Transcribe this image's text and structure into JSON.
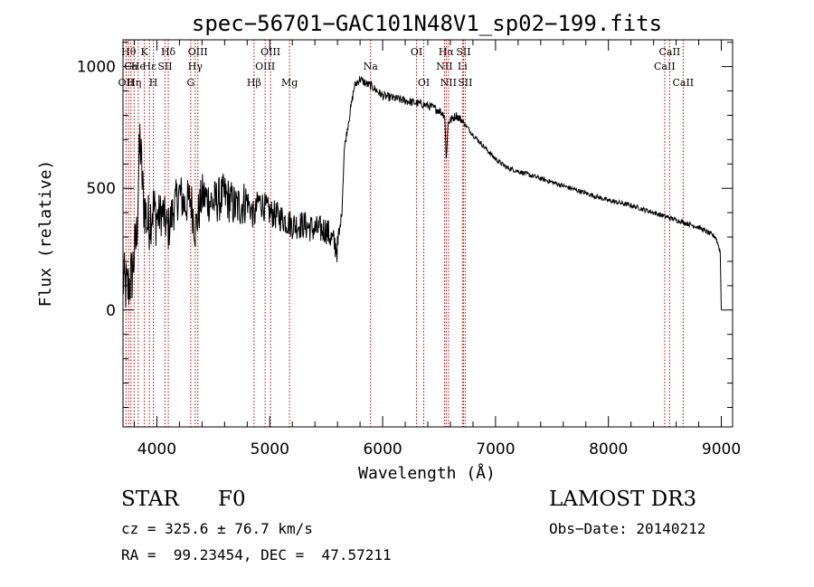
{
  "chart_data": {
    "type": "line",
    "title": "spec−56701−GAC101N48V1_sp02−199.fits",
    "xlabel": "Wavelength (Å)",
    "ylabel": "Flux (relative)",
    "xlim": [
      3700,
      9100
    ],
    "ylim": [
      -480,
      1110
    ],
    "x_ticks": [
      4000,
      5000,
      6000,
      7000,
      8000,
      9000
    ],
    "y_ticks": [
      0,
      500,
      1000
    ],
    "x_minor_step": 200,
    "y_minor_step": 100,
    "series": [
      {
        "name": "spectrum",
        "anchors": [
          [
            3700,
            120
          ],
          [
            3740,
            80
          ],
          [
            3780,
            150
          ],
          [
            3820,
            300
          ],
          [
            3850,
            700
          ],
          [
            3880,
            450
          ],
          [
            3920,
            350
          ],
          [
            3960,
            420
          ],
          [
            4000,
            380
          ],
          [
            4050,
            400
          ],
          [
            4101,
            330
          ],
          [
            4150,
            420
          ],
          [
            4200,
            480
          ],
          [
            4250,
            430
          ],
          [
            4300,
            460
          ],
          [
            4340,
            330
          ],
          [
            4400,
            470
          ],
          [
            4500,
            440
          ],
          [
            4600,
            470
          ],
          [
            4700,
            420
          ],
          [
            4800,
            450
          ],
          [
            4861,
            380
          ],
          [
            4900,
            450
          ],
          [
            5000,
            400
          ],
          [
            5100,
            380
          ],
          [
            5200,
            350
          ],
          [
            5300,
            350
          ],
          [
            5400,
            330
          ],
          [
            5500,
            330
          ],
          [
            5560,
            280
          ],
          [
            5600,
            250
          ],
          [
            5640,
            410
          ],
          [
            5660,
            660
          ],
          [
            5700,
            780
          ],
          [
            5750,
            920
          ],
          [
            5800,
            950
          ],
          [
            5850,
            930
          ],
          [
            5900,
            920
          ],
          [
            5950,
            900
          ],
          [
            6000,
            880
          ],
          [
            6100,
            870
          ],
          [
            6200,
            860
          ],
          [
            6300,
            850
          ],
          [
            6400,
            840
          ],
          [
            6500,
            820
          ],
          [
            6550,
            800
          ],
          [
            6563,
            620
          ],
          [
            6580,
            770
          ],
          [
            6650,
            800
          ],
          [
            6700,
            780
          ],
          [
            6800,
            720
          ],
          [
            6900,
            670
          ],
          [
            7000,
            620
          ],
          [
            7100,
            585
          ],
          [
            7200,
            570
          ],
          [
            7400,
            540
          ],
          [
            7600,
            510
          ],
          [
            7800,
            480
          ],
          [
            8000,
            450
          ],
          [
            8200,
            430
          ],
          [
            8400,
            400
          ],
          [
            8600,
            370
          ],
          [
            8800,
            340
          ],
          [
            8950,
            300
          ],
          [
            8990,
            240
          ],
          [
            9000,
            0
          ]
        ]
      }
    ],
    "lines": [
      {
        "x": 3727,
        "label": "OII",
        "row": 3
      },
      {
        "x": 3750,
        "label": "Hθ",
        "row": 1
      },
      {
        "x": 3770,
        "label": "Ca",
        "row": 2
      },
      {
        "x": 3798,
        "label": "Hη",
        "row": 3
      },
      {
        "x": 3835,
        "label": "He",
        "row": 2
      },
      {
        "x": 3889,
        "label": "K",
        "row": 1
      },
      {
        "x": 3934,
        "label": "Hε",
        "row": 2
      },
      {
        "x": 3969,
        "label": "H",
        "row": 3
      },
      {
        "x": 4072,
        "label": "SII",
        "row": 2
      },
      {
        "x": 4101,
        "label": "Hδ",
        "row": 1
      },
      {
        "x": 4300,
        "label": "G",
        "row": 3
      },
      {
        "x": 4340,
        "label": "Hγ",
        "row": 2
      },
      {
        "x": 4363,
        "label": "OIII",
        "row": 1
      },
      {
        "x": 4861,
        "label": "Hβ",
        "row": 3
      },
      {
        "x": 4959,
        "label": "OIII",
        "row": 2
      },
      {
        "x": 5007,
        "label": "OIII",
        "row": 1
      },
      {
        "x": 5175,
        "label": "Mg",
        "row": 3
      },
      {
        "x": 5893,
        "label": "Na",
        "row": 2
      },
      {
        "x": 6300,
        "label": "OI",
        "row": 1
      },
      {
        "x": 6364,
        "label": "OI",
        "row": 3
      },
      {
        "x": 6548,
        "label": "NII",
        "row": 2
      },
      {
        "x": 6563,
        "label": "Hα",
        "row": 1
      },
      {
        "x": 6583,
        "label": "NII",
        "row": 3
      },
      {
        "x": 6707,
        "label": "Li",
        "row": 2
      },
      {
        "x": 6716,
        "label": "SII",
        "row": 1
      },
      {
        "x": 6731,
        "label": "SII",
        "row": 3
      },
      {
        "x": 8498,
        "label": "CaII",
        "row": 2
      },
      {
        "x": 8542,
        "label": "CaII",
        "row": 1
      },
      {
        "x": 8662,
        "label": "CaII",
        "row": 3
      }
    ]
  },
  "info": {
    "object_class": "STAR",
    "subclass": "F0",
    "survey": "LAMOST DR3",
    "redshift": "cz = 325.6 ± 76.7 km/s",
    "obs_date": "Obs−Date: 20140212",
    "coords": "RA =  99.23454, DEC =  47.57211"
  }
}
